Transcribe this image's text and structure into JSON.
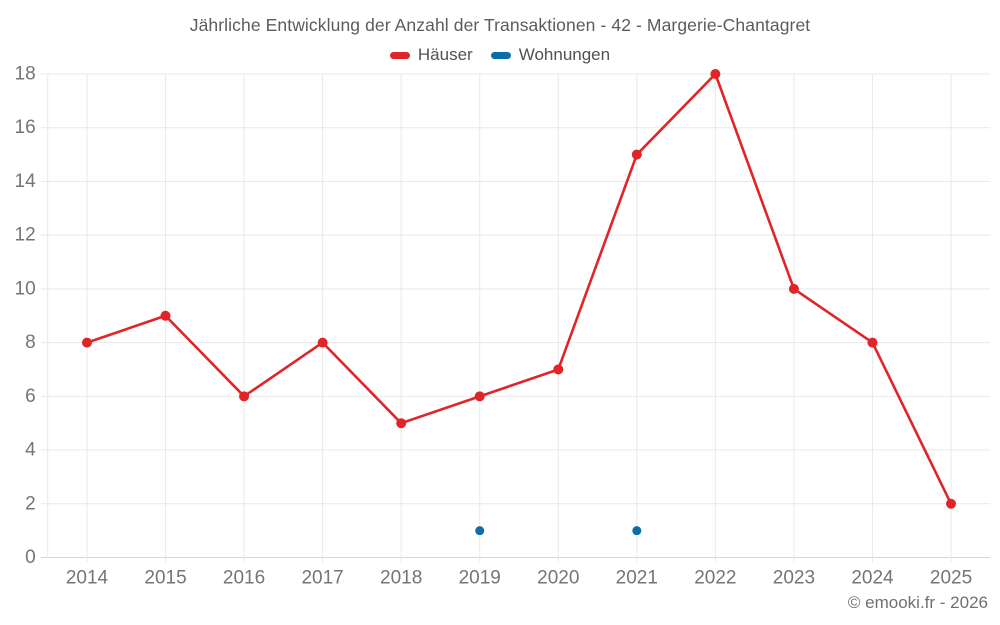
{
  "header": {
    "title": "Jährliche Entwicklung der Anzahl der Transaktionen - 42 - Margerie-Chantagret"
  },
  "legend": {
    "items": [
      {
        "label": "Häuser",
        "color": "#e02529"
      },
      {
        "label": "Wohnungen",
        "color": "#0d6ea6"
      }
    ]
  },
  "footer": {
    "credit": "© emooki.fr - 2026"
  },
  "colors": {
    "background": "#ffffff",
    "grid": "#e9e9e9",
    "axis": "#d6d6d6",
    "tick_label": "#757575",
    "title_text": "#5a5c5e",
    "legend_text": "#4f5255",
    "footer_text": "#707070"
  },
  "chart_data": {
    "type": "line",
    "title": "Jährliche Entwicklung der Anzahl der Transaktionen - 42 - Margerie-Chantagret",
    "categories": [
      "2014",
      "2015",
      "2016",
      "2017",
      "2018",
      "2019",
      "2020",
      "2021",
      "2022",
      "2023",
      "2024",
      "2025"
    ],
    "series": [
      {
        "id": "haeuser",
        "name": "Häuser",
        "color": "#e02529",
        "marker_radius": 5,
        "values": [
          8,
          9,
          6,
          8,
          5,
          6,
          7,
          15,
          18,
          10,
          8,
          2
        ]
      },
      {
        "id": "wohnungen",
        "name": "Wohnungen",
        "color": "#0d6ea6",
        "marker_radius": 4.5,
        "values": [
          null,
          null,
          null,
          null,
          null,
          1,
          null,
          1,
          null,
          null,
          null,
          null
        ]
      }
    ],
    "xlabel": "",
    "ylabel": "",
    "ylim": [
      0,
      18
    ],
    "yticks": [
      0,
      2,
      4,
      6,
      8,
      10,
      12,
      14,
      16,
      18
    ],
    "grid": true,
    "legend_position": "top"
  }
}
